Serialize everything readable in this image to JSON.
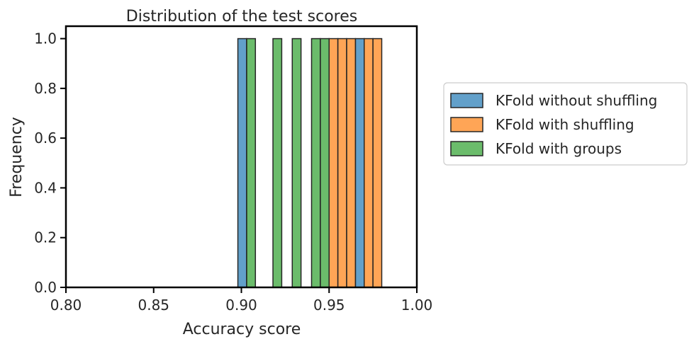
{
  "chart_data": {
    "type": "histogram",
    "title": "Distribution of the test scores",
    "xlabel": "Accuracy score",
    "ylabel": "Frequency",
    "xlim": [
      0.8,
      1.0
    ],
    "ylim": [
      0.0,
      1.05
    ],
    "xticks": [
      "0.80",
      "0.85",
      "0.90",
      "0.95",
      "1.00"
    ],
    "yticks": [
      "0.0",
      "0.2",
      "0.4",
      "0.6",
      "0.8",
      "1.0"
    ],
    "grid": false,
    "legend_position": "outside right",
    "series": [
      {
        "name": "KFold without shuffling",
        "color": "#1f77b4",
        "bins": [
          {
            "x0": 0.898,
            "x1": 0.903,
            "count": 1
          },
          {
            "x0": 0.965,
            "x1": 0.97,
            "count": 1
          }
        ]
      },
      {
        "name": "KFold with shuffling",
        "color": "#ff7f0e",
        "bins": [
          {
            "x0": 0.95,
            "x1": 0.955,
            "count": 1
          },
          {
            "x0": 0.955,
            "x1": 0.96,
            "count": 1
          },
          {
            "x0": 0.96,
            "x1": 0.965,
            "count": 1
          },
          {
            "x0": 0.97,
            "x1": 0.975,
            "count": 1
          },
          {
            "x0": 0.975,
            "x1": 0.98,
            "count": 1
          }
        ]
      },
      {
        "name": "KFold with groups",
        "color": "#2ca02c",
        "bins": [
          {
            "x0": 0.903,
            "x1": 0.908,
            "count": 1
          },
          {
            "x0": 0.918,
            "x1": 0.923,
            "count": 1
          },
          {
            "x0": 0.929,
            "x1": 0.934,
            "count": 1
          },
          {
            "x0": 0.94,
            "x1": 0.945,
            "count": 1
          },
          {
            "x0": 0.945,
            "x1": 0.95,
            "count": 1
          }
        ]
      }
    ]
  }
}
